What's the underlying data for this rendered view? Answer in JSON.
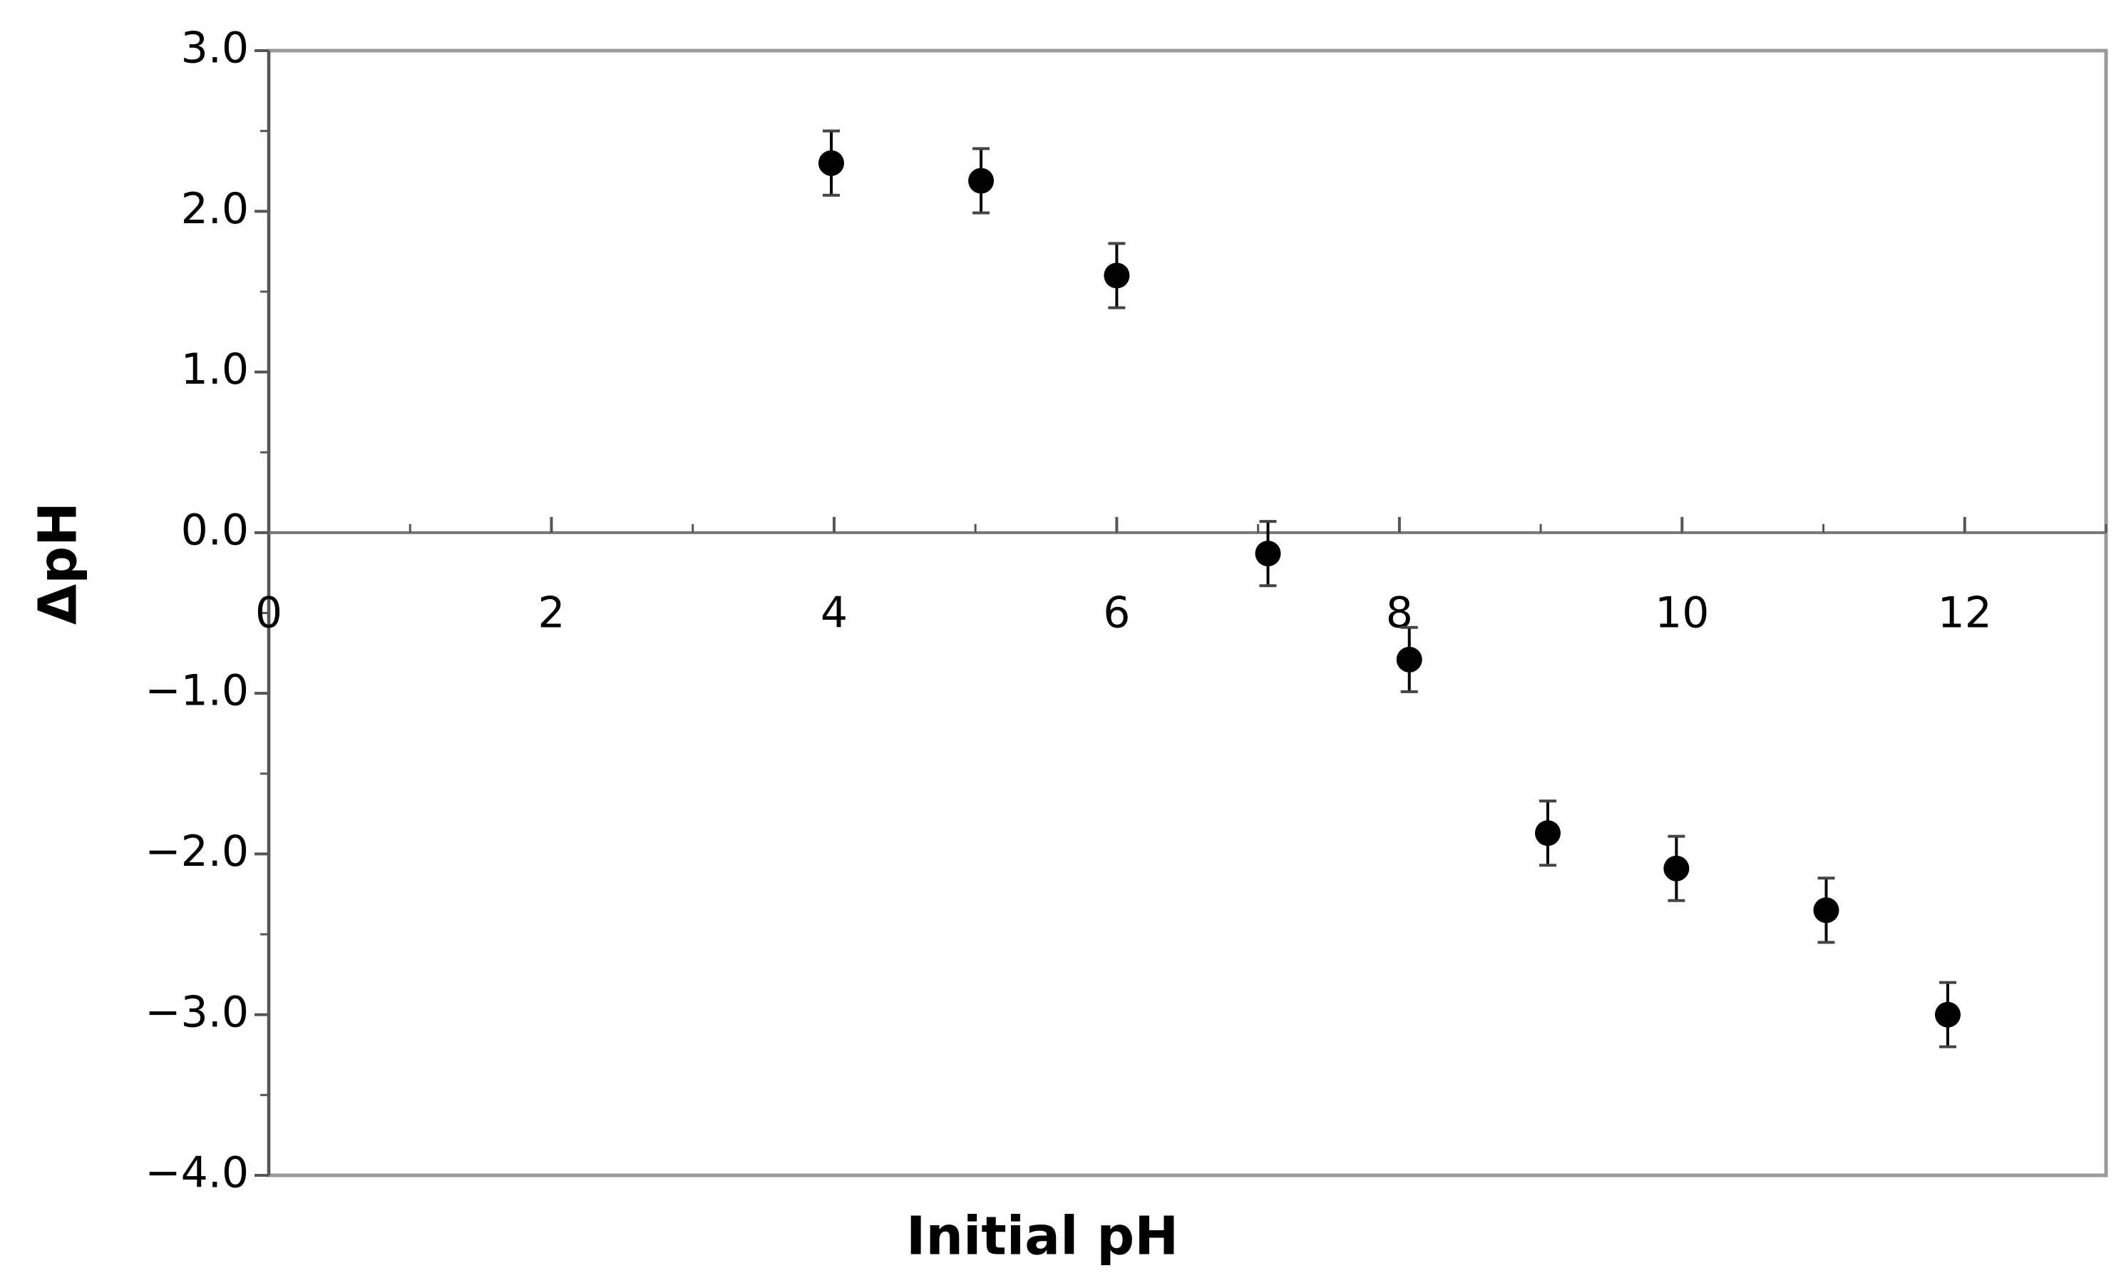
{
  "chart_data": {
    "type": "scatter",
    "x_label": "Initial pH",
    "y_label": "ΔpH",
    "x": [
      3.98,
      5.04,
      6.0,
      7.07,
      8.07,
      9.05,
      9.96,
      11.02,
      11.88
    ],
    "values": [
      2.3,
      2.19,
      1.6,
      -0.13,
      -0.79,
      -1.87,
      -2.09,
      -2.35,
      -3.0
    ],
    "errors": [
      0.2,
      0.2,
      0.2,
      0.2,
      0.2,
      0.2,
      0.2,
      0.2,
      0.2
    ],
    "color": "#000000",
    "xlim": [
      0,
      13
    ],
    "xticks": [
      0,
      2,
      4,
      6,
      8,
      10,
      12
    ],
    "xminorticks": [
      1,
      3,
      5,
      7,
      9,
      11,
      13
    ],
    "ylim": [
      -4,
      3
    ],
    "yticks": [
      {
        "value": 3,
        "label": "3.0"
      },
      {
        "value": 2,
        "label": "2.0"
      },
      {
        "value": 1,
        "label": "1.0"
      },
      {
        "value": 0,
        "label": "0.0"
      },
      {
        "value": -1,
        "label": "−1.0"
      },
      {
        "value": -2,
        "label": "−2.0"
      },
      {
        "value": -3,
        "label": "−3.0"
      },
      {
        "value": -4,
        "label": "−4.0"
      }
    ],
    "yminorticks": [
      2.5,
      1.5,
      0.5,
      -0.5,
      -1.5,
      -2.5,
      -3.5
    ]
  }
}
